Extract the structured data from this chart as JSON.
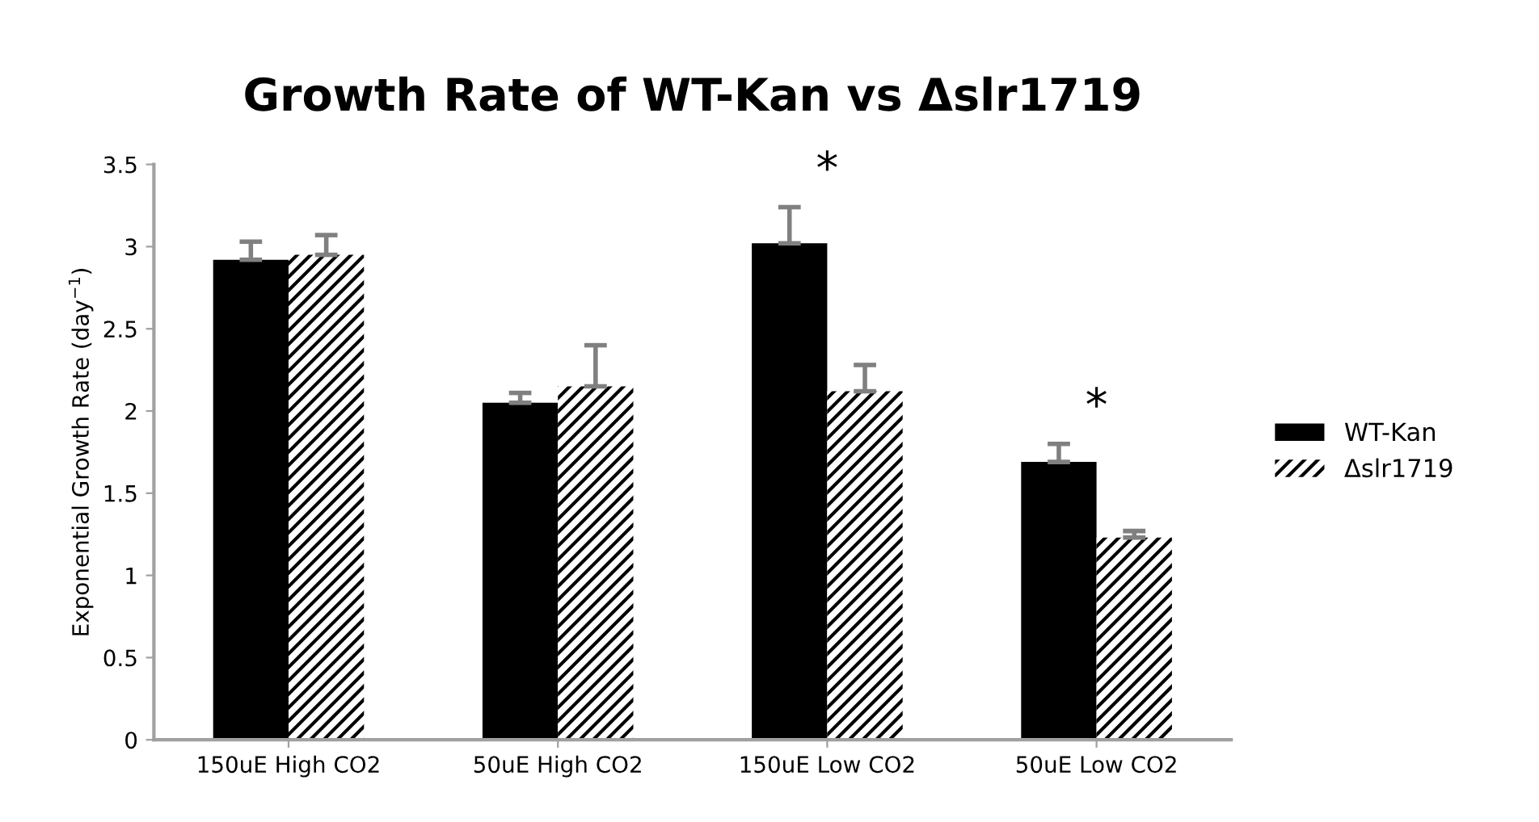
{
  "chart_data": {
    "type": "bar",
    "title": "Growth Rate of WT-Kan vs Δslr1719",
    "ylabel": "Exponential Growth Rate (day$^{−1}$)",
    "categories": [
      "150uE High CO2",
      "50uE High CO2",
      "150uE Low CO2",
      "50uE Low CO2"
    ],
    "series": [
      {
        "name": "WT-Kan",
        "color": "#000000",
        "values": [
          2.92,
          2.05,
          3.02,
          1.69
        ],
        "errors": [
          0.11,
          0.06,
          0.22,
          0.11
        ]
      },
      {
        "name": "Δslr1719",
        "color": "#000000",
        "values": [
          2.95,
          2.15,
          2.12,
          1.23
        ],
        "errors": [
          0.12,
          0.25,
          0.16,
          0.04
        ]
      }
    ],
    "annotations": [
      "*",
      "*"
    ],
    "ylim": [
      0,
      3.5
    ],
    "yticks": [
      0,
      0.5,
      1,
      1.5,
      2,
      2.5,
      3,
      3.5
    ],
    "grid": false,
    "legend": "right"
  }
}
